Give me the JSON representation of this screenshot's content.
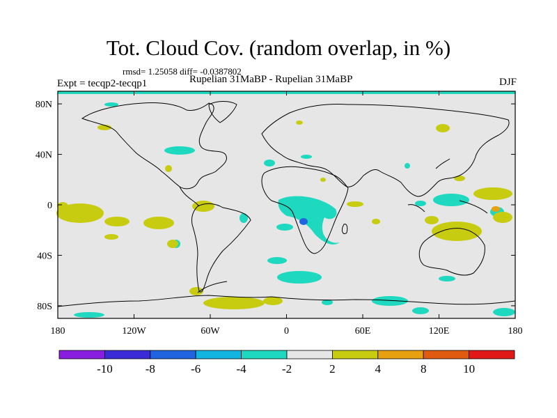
{
  "title": "Tot. Cloud Cov. (random overlap, in %)",
  "stats": "rmsd= 1.25058 diff= -0.0387802",
  "experiment": "Expt = tecqp2-tecqp1",
  "subtitle": "Rupelian  31MaBP - Rupelian  31MaBP",
  "season": "DJF",
  "map": {
    "lon_range": [
      -180,
      180
    ],
    "lat_range": [
      -90,
      90
    ],
    "x_ticks": [
      {
        "value": -180,
        "label": "180"
      },
      {
        "value": -120,
        "label": "120W"
      },
      {
        "value": -60,
        "label": "60W"
      },
      {
        "value": 0,
        "label": "0"
      },
      {
        "value": 60,
        "label": "60E"
      },
      {
        "value": 120,
        "label": "120E"
      },
      {
        "value": 180,
        "label": "180"
      }
    ],
    "y_ticks": [
      {
        "value": 80,
        "label": "80N"
      },
      {
        "value": 40,
        "label": "40N"
      },
      {
        "value": 0,
        "label": "0"
      },
      {
        "value": -40,
        "label": "40S"
      },
      {
        "value": -80,
        "label": "80S"
      }
    ],
    "background_color": "#e6e6e6"
  },
  "colorbar": {
    "colors": [
      "#8a1ee0",
      "#3a2ad8",
      "#2064e0",
      "#12b4e0",
      "#1ed8c0",
      "#e6e6e6",
      "#c8cc10",
      "#e6a010",
      "#e05a10",
      "#e01818"
    ],
    "labels": [
      "-10",
      "-8",
      "-6",
      "-4",
      "-2",
      "2",
      "4",
      "8",
      "10"
    ]
  }
}
